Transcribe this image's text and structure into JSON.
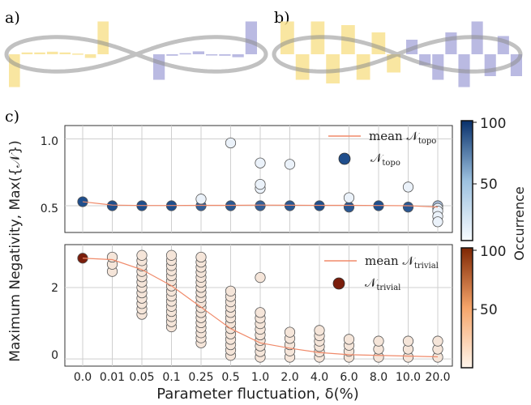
{
  "panels": {
    "a": {
      "label": "a)",
      "left_bars": [
        -0.9,
        0.05,
        0.05,
        0.07,
        0.05,
        0.02,
        -0.1,
        0.9
      ],
      "right_bars": [
        -0.7,
        -0.04,
        0.03,
        0.08,
        -0.03,
        -0.04,
        -0.08,
        0.9
      ]
    },
    "b": {
      "label": "b)",
      "left_bars": [
        0.9,
        -0.7,
        0.9,
        -0.8,
        0.8,
        -0.7,
        0.6,
        -0.5
      ],
      "right_bars": [
        0.4,
        -0.3,
        -0.7,
        0.6,
        -0.9,
        0.9,
        -0.6,
        0.5,
        -0.6
      ]
    }
  },
  "colors": {
    "yellow": "#f7e08a",
    "blue": "#a9a9db",
    "topo_dark": "#1f4e8c",
    "trivial_dark": "#7a1d0b",
    "mean_line": "#f08a6a"
  },
  "chart_data": {
    "type": "scatter",
    "panel_label": "c)",
    "categories": [
      "0.0",
      "0.01",
      "0.05",
      "0.1",
      "0.25",
      "0.5",
      "1.0",
      "2.0",
      "4.0",
      "6.0",
      "8.0",
      "10.0",
      "20.0"
    ],
    "xlabel": "Parameter fluctuation, δ(%)",
    "ylabel": "Maximum Negativity, Max({𝒩})",
    "top": {
      "ylim": [
        0.3,
        1.1
      ],
      "yticks": [
        "0.5",
        "1.0"
      ],
      "mean_label": "mean 𝒩",
      "mean_sub": "topo",
      "marker_label": "𝒩",
      "marker_sub": "topo",
      "mean": [
        0.53,
        0.505,
        0.502,
        0.502,
        0.503,
        0.503,
        0.505,
        0.504,
        0.503,
        0.503,
        0.502,
        0.5,
        0.49
      ],
      "points": [
        [
          0.53
        ],
        [
          0.5
        ],
        [
          0.5
        ],
        [
          0.5
        ],
        [
          0.5,
          0.55
        ],
        [
          0.5,
          0.97
        ],
        [
          0.5,
          0.63,
          0.66,
          0.82
        ],
        [
          0.5,
          0.81
        ],
        [
          0.5
        ],
        [
          0.49,
          0.56
        ],
        [
          0.5
        ],
        [
          0.49,
          0.64
        ],
        [
          0.5,
          0.48,
          0.46,
          0.42,
          0.38
        ]
      ],
      "occurrence": [
        100,
        100,
        100,
        100,
        90,
        95,
        90,
        95,
        100,
        95,
        100,
        95,
        40
      ]
    },
    "bottom": {
      "ylim": [
        -0.2,
        3.2
      ],
      "yticks": [
        "0",
        "2"
      ],
      "mean_label": "mean 𝒩",
      "mean_sub": "trivial",
      "marker_label": "𝒩",
      "marker_sub": "trivial",
      "mean": [
        2.82,
        2.78,
        2.5,
        2.05,
        1.45,
        0.85,
        0.45,
        0.3,
        0.18,
        0.12,
        0.1,
        0.08,
        0.06
      ],
      "ranges": [
        [
          2.82,
          2.82
        ],
        [
          2.45,
          2.85
        ],
        [
          1.25,
          2.9
        ],
        [
          0.9,
          2.9
        ],
        [
          0.45,
          2.85
        ],
        [
          0.1,
          1.9
        ],
        [
          0.05,
          1.3
        ],
        [
          0.05,
          0.75
        ],
        [
          0.05,
          0.8
        ],
        [
          0.05,
          0.55
        ],
        [
          0.05,
          0.5
        ],
        [
          0.05,
          0.5
        ],
        [
          0.05,
          0.5
        ]
      ],
      "extras": [
        [],
        [],
        [],
        [],
        [],
        [],
        [
          2.28
        ],
        [],
        [],
        [],
        [],
        [],
        []
      ]
    },
    "colorbar_label": "Occurrence",
    "colorbar_ticks": [
      "100",
      "50"
    ]
  }
}
